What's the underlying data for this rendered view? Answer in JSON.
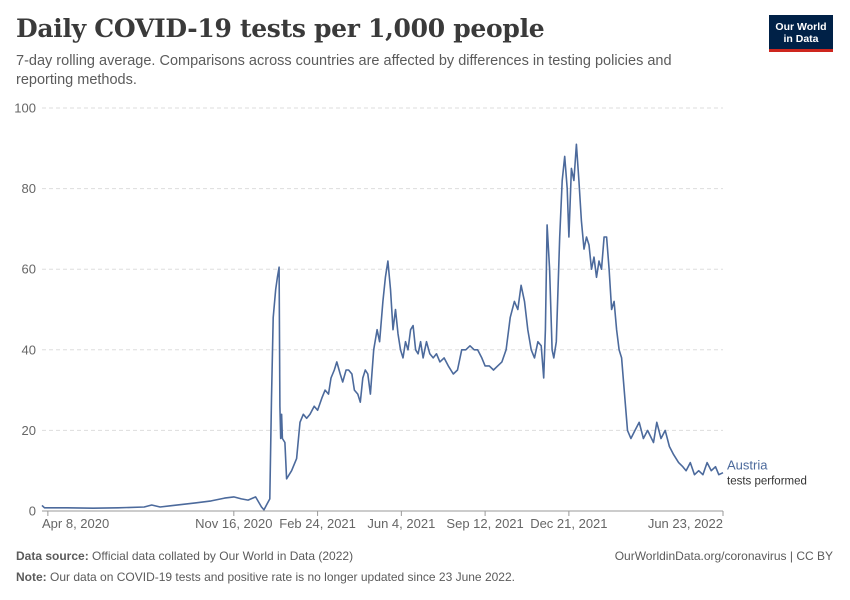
{
  "header": {
    "title": "Daily COVID-19 tests per 1,000 people",
    "subtitle": "7-day rolling average. Comparisons across countries are affected by differences in testing policies and reporting methods."
  },
  "logo": {
    "line1": "Our World",
    "line2": "in Data",
    "bg_color": "#002147",
    "accent_color": "#ce261e"
  },
  "footer": {
    "source_label": "Data source:",
    "source_text": "Official data collated by Our World in Data (2022)",
    "note_label": "Note:",
    "note_text": "Our data on COVID-19 tests and positive rate is no longer updated since 23 June 2022.",
    "credit": "OurWorldinData.org/coronavirus | CC BY"
  },
  "chart_data": {
    "type": "line",
    "title": "Daily COVID-19 tests per 1,000 people",
    "ylim": [
      0,
      100
    ],
    "yticks": [
      0,
      20,
      40,
      60,
      80,
      100
    ],
    "xlim": [
      "2020-04-01",
      "2022-06-23"
    ],
    "xticks": [
      {
        "date": "2020-04-08",
        "label": "Apr 8, 2020"
      },
      {
        "date": "2020-11-16",
        "label": "Nov 16, 2020"
      },
      {
        "date": "2021-02-24",
        "label": "Feb 24, 2021"
      },
      {
        "date": "2021-06-04",
        "label": "Jun 4, 2021"
      },
      {
        "date": "2021-09-12",
        "label": "Sep 12, 2021"
      },
      {
        "date": "2021-12-21",
        "label": "Dec 21, 2021"
      },
      {
        "date": "2022-06-23",
        "label": "Jun 23, 2022"
      }
    ],
    "grid": true,
    "series": [
      {
        "name": "Austria",
        "label_sub": "tests performed",
        "color": "#4c6a9c",
        "points": [
          [
            "2020-04-01",
            1.4
          ],
          [
            "2020-04-04",
            0.8
          ],
          [
            "2020-05-01",
            0.8
          ],
          [
            "2020-06-01",
            0.7
          ],
          [
            "2020-07-01",
            0.8
          ],
          [
            "2020-08-01",
            1.0
          ],
          [
            "2020-08-10",
            1.5
          ],
          [
            "2020-08-20",
            1.0
          ],
          [
            "2020-09-01",
            1.3
          ],
          [
            "2020-10-01",
            2.0
          ],
          [
            "2020-10-20",
            2.5
          ],
          [
            "2020-11-05",
            3.2
          ],
          [
            "2020-11-16",
            3.5
          ],
          [
            "2020-11-25",
            3.0
          ],
          [
            "2020-12-03",
            2.7
          ],
          [
            "2020-12-12",
            3.5
          ],
          [
            "2020-12-19",
            1.0
          ],
          [
            "2020-12-22",
            0.3
          ],
          [
            "2020-12-25",
            1.5
          ],
          [
            "2020-12-29",
            3.0
          ],
          [
            "2020-12-31",
            28
          ],
          [
            "2021-01-02",
            48
          ],
          [
            "2021-01-05",
            55
          ],
          [
            "2021-01-07",
            58
          ],
          [
            "2021-01-09",
            60.5
          ],
          [
            "2021-01-10",
            26
          ],
          [
            "2021-01-11",
            18
          ],
          [
            "2021-01-12",
            24
          ],
          [
            "2021-01-13",
            18
          ],
          [
            "2021-01-16",
            17
          ],
          [
            "2021-01-18",
            8
          ],
          [
            "2021-01-24",
            10
          ],
          [
            "2021-01-30",
            13
          ],
          [
            "2021-02-03",
            22
          ],
          [
            "2021-02-07",
            24
          ],
          [
            "2021-02-11",
            23
          ],
          [
            "2021-02-15",
            24
          ],
          [
            "2021-02-20",
            26
          ],
          [
            "2021-02-24",
            25
          ],
          [
            "2021-03-01",
            28
          ],
          [
            "2021-03-05",
            30
          ],
          [
            "2021-03-09",
            29
          ],
          [
            "2021-03-12",
            33
          ],
          [
            "2021-03-16",
            35
          ],
          [
            "2021-03-19",
            37
          ],
          [
            "2021-03-23",
            34
          ],
          [
            "2021-03-26",
            32
          ],
          [
            "2021-03-30",
            35
          ],
          [
            "2021-04-02",
            35
          ],
          [
            "2021-04-06",
            34
          ],
          [
            "2021-04-09",
            30
          ],
          [
            "2021-04-13",
            29
          ],
          [
            "2021-04-16",
            27
          ],
          [
            "2021-04-19",
            33
          ],
          [
            "2021-04-22",
            35
          ],
          [
            "2021-04-25",
            34
          ],
          [
            "2021-04-28",
            29
          ],
          [
            "2021-05-02",
            40
          ],
          [
            "2021-05-06",
            45
          ],
          [
            "2021-05-09",
            42
          ],
          [
            "2021-05-13",
            52
          ],
          [
            "2021-05-16",
            58
          ],
          [
            "2021-05-19",
            62
          ],
          [
            "2021-05-22",
            55
          ],
          [
            "2021-05-25",
            45
          ],
          [
            "2021-05-28",
            50
          ],
          [
            "2021-05-31",
            44
          ],
          [
            "2021-06-03",
            40
          ],
          [
            "2021-06-06",
            38
          ],
          [
            "2021-06-09",
            42
          ],
          [
            "2021-06-12",
            40
          ],
          [
            "2021-06-15",
            45
          ],
          [
            "2021-06-18",
            46
          ],
          [
            "2021-06-21",
            40
          ],
          [
            "2021-06-24",
            39
          ],
          [
            "2021-06-27",
            42
          ],
          [
            "2021-06-30",
            38
          ],
          [
            "2021-07-04",
            42
          ],
          [
            "2021-07-08",
            39
          ],
          [
            "2021-07-12",
            38
          ],
          [
            "2021-07-16",
            39
          ],
          [
            "2021-07-20",
            37
          ],
          [
            "2021-07-25",
            38
          ],
          [
            "2021-07-30",
            36
          ],
          [
            "2021-08-05",
            34
          ],
          [
            "2021-08-10",
            35
          ],
          [
            "2021-08-15",
            40
          ],
          [
            "2021-08-20",
            40
          ],
          [
            "2021-08-25",
            41
          ],
          [
            "2021-08-30",
            40
          ],
          [
            "2021-09-03",
            40
          ],
          [
            "2021-09-08",
            38
          ],
          [
            "2021-09-12",
            36
          ],
          [
            "2021-09-17",
            36
          ],
          [
            "2021-09-22",
            35
          ],
          [
            "2021-09-27",
            36
          ],
          [
            "2021-10-02",
            37
          ],
          [
            "2021-10-07",
            40
          ],
          [
            "2021-10-12",
            48
          ],
          [
            "2021-10-17",
            52
          ],
          [
            "2021-10-21",
            50
          ],
          [
            "2021-10-25",
            56
          ],
          [
            "2021-10-29",
            52
          ],
          [
            "2021-11-02",
            45
          ],
          [
            "2021-11-06",
            40
          ],
          [
            "2021-11-10",
            38
          ],
          [
            "2021-11-14",
            42
          ],
          [
            "2021-11-18",
            41
          ],
          [
            "2021-11-21",
            33
          ],
          [
            "2021-11-23",
            45
          ],
          [
            "2021-11-25",
            71
          ],
          [
            "2021-11-28",
            60
          ],
          [
            "2021-12-01",
            40
          ],
          [
            "2021-12-03",
            38
          ],
          [
            "2021-12-06",
            42
          ],
          [
            "2021-12-10",
            68
          ],
          [
            "2021-12-13",
            82
          ],
          [
            "2021-12-16",
            88
          ],
          [
            "2021-12-19",
            80
          ],
          [
            "2021-12-21",
            68
          ],
          [
            "2021-12-24",
            85
          ],
          [
            "2021-12-27",
            82
          ],
          [
            "2021-12-30",
            91
          ],
          [
            "2022-01-02",
            82
          ],
          [
            "2022-01-05",
            72
          ],
          [
            "2022-01-08",
            65
          ],
          [
            "2022-01-11",
            68
          ],
          [
            "2022-01-14",
            66
          ],
          [
            "2022-01-17",
            60
          ],
          [
            "2022-01-20",
            63
          ],
          [
            "2022-01-23",
            58
          ],
          [
            "2022-01-26",
            62
          ],
          [
            "2022-01-29",
            60
          ],
          [
            "2022-02-01",
            68
          ],
          [
            "2022-02-04",
            68
          ],
          [
            "2022-02-07",
            60
          ],
          [
            "2022-02-10",
            50
          ],
          [
            "2022-02-13",
            52
          ],
          [
            "2022-02-16",
            45
          ],
          [
            "2022-02-19",
            40
          ],
          [
            "2022-02-22",
            38
          ],
          [
            "2022-02-25",
            30
          ],
          [
            "2022-03-01",
            20
          ],
          [
            "2022-03-05",
            18
          ],
          [
            "2022-03-10",
            20
          ],
          [
            "2022-03-15",
            22
          ],
          [
            "2022-03-20",
            18
          ],
          [
            "2022-03-25",
            20
          ],
          [
            "2022-04-01",
            17
          ],
          [
            "2022-04-05",
            22
          ],
          [
            "2022-04-10",
            18
          ],
          [
            "2022-04-15",
            20
          ],
          [
            "2022-04-20",
            16
          ],
          [
            "2022-04-25",
            14
          ],
          [
            "2022-05-01",
            12
          ],
          [
            "2022-05-06",
            11
          ],
          [
            "2022-05-10",
            10
          ],
          [
            "2022-05-15",
            12
          ],
          [
            "2022-05-20",
            9
          ],
          [
            "2022-05-25",
            10
          ],
          [
            "2022-05-30",
            9
          ],
          [
            "2022-06-04",
            12
          ],
          [
            "2022-06-09",
            10
          ],
          [
            "2022-06-14",
            11
          ],
          [
            "2022-06-18",
            9
          ],
          [
            "2022-06-23",
            9.5
          ]
        ]
      }
    ]
  }
}
